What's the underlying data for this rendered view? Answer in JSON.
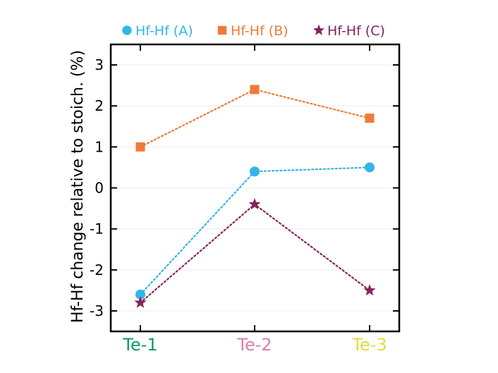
{
  "chart_data": {
    "type": "line",
    "title": "",
    "xlabel": "",
    "ylabel": "Hf-Hf change relative to stoich. (%)",
    "categories": [
      "Te-1",
      "Te-2",
      "Te-3"
    ],
    "category_colors": [
      "#0c9a6b",
      "#d97fb0",
      "#e4da3c"
    ],
    "ylim": [
      -3.5,
      3.5
    ],
    "yticks": [
      3,
      2,
      1,
      0,
      -1,
      -2,
      -3
    ],
    "ytick_labels": [
      "3",
      "2",
      "1",
      "0",
      "-1",
      "-2",
      "-3"
    ],
    "grid": true,
    "legend_position": "top",
    "series": [
      {
        "name": "Hf-Hf (A)",
        "values": [
          -2.6,
          0.4,
          0.5
        ],
        "color": "#33b5e8",
        "marker": "circle"
      },
      {
        "name": "Hf-Hf (B)",
        "values": [
          1.0,
          2.4,
          1.7
        ],
        "color": "#f07b36",
        "marker": "square"
      },
      {
        "name": "Hf-Hf (C)",
        "values": [
          -2.8,
          -0.4,
          -2.5
        ],
        "color": "#84245a",
        "marker": "star"
      }
    ]
  }
}
